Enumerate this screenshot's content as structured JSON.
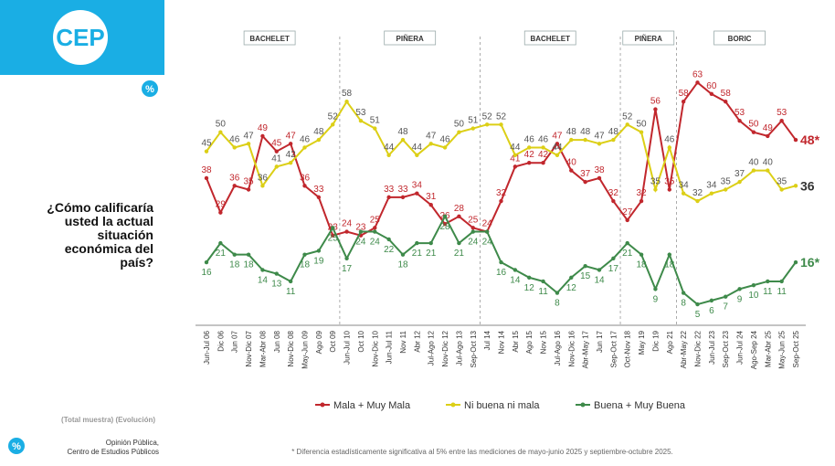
{
  "sidebar": {
    "logo": "CEP",
    "icon": "%",
    "question": [
      "¿Cómo calificaría",
      "usted la actual",
      "situación",
      "económica del",
      "país?"
    ],
    "sample_note": "(Total muestra) (Evolución)",
    "source": [
      "Opinión Pública,",
      "Centro de Estudios Públicos"
    ]
  },
  "footnote": "* Diferencia estadísticamente significativa al 5% entre las mediciones de mayo-junio 2025 y septiembre-octubre 2025.",
  "chart_data": {
    "type": "line",
    "categories": [
      "Jun-Jul 06",
      "Dic 06",
      "Jun 07",
      "Nov-Dic 07",
      "Mar-Abr 08",
      "Jun 08",
      "Nov-Dic 08",
      "May-Jun 09",
      "Ago 09",
      "Oct 09",
      "Jun-Jul 10",
      "Oct 10",
      "Nov-Dic 10",
      "Jun-Jul 11",
      "Nov 11",
      "Abr 12",
      "Jul-Ago 12",
      "Nov-Dic 12",
      "Jul-Ago 13",
      "Sep-Oct 13",
      "Jul 14",
      "Nov 14",
      "Abr 15",
      "Ago 15",
      "Nov 15",
      "Jul-Ago 16",
      "Nov-Dic 16",
      "Abr-May 17",
      "Jun 17",
      "Sep-Oct 17",
      "Oct-Nov 18",
      "May 19",
      "Dic 19",
      "Ago 21",
      "Abr-May 22",
      "Nov-Dic 22",
      "Jun-Jul 23",
      "Sep-Oct 23",
      "Jun-Jul 24",
      "Ago-Sep 24",
      "Mar-Abr 25",
      "May-Jun 25",
      "Sep-Oct 25"
    ],
    "ylim": [
      0,
      70
    ],
    "periods": [
      {
        "label": "BACHELET",
        "from": "Jun-Jul 06",
        "to": "Oct 09"
      },
      {
        "label": "PIÑERA",
        "from": "Jun-Jul 10",
        "to": "Sep-Oct 13"
      },
      {
        "label": "BACHELET",
        "from": "Jul 14",
        "to": "Sep-Oct 17"
      },
      {
        "label": "PIÑERA",
        "from": "Oct-Nov 18",
        "to": "Ago 21"
      },
      {
        "label": "BORIC",
        "from": "Abr-May 22",
        "to": "Sep-Oct 25"
      }
    ],
    "series": [
      {
        "name": "Mala + Muy Mala",
        "color": "#c1272d",
        "label_side": "above",
        "values": [
          38,
          29,
          36,
          35,
          49,
          45,
          47,
          36,
          33,
          23,
          24,
          23,
          25,
          33,
          33,
          34,
          31,
          26,
          28,
          25,
          24,
          32,
          41,
          42,
          42,
          47,
          40,
          37,
          38,
          32,
          27,
          32,
          56,
          35,
          58,
          63,
          60,
          58,
          53,
          50,
          49,
          53,
          48
        ],
        "value_labels": [
          "38",
          "29",
          "36",
          "35",
          "49",
          "45",
          "47",
          "36",
          "33",
          "23",
          "24",
          "23",
          "25",
          "33",
          "33",
          "34",
          "31",
          "26",
          "28",
          "25",
          "24",
          "32",
          "41",
          "42",
          "42",
          "47",
          "40",
          "37",
          "38",
          "32",
          "27",
          "32",
          "56",
          "35",
          "58",
          "63",
          "60",
          "58",
          "53",
          "50",
          "49",
          "53",
          "48*"
        ]
      },
      {
        "name": "Ni buena ni mala",
        "color": "#dccf16",
        "label_side": "above",
        "values": [
          45,
          50,
          46,
          47,
          36,
          41,
          42,
          46,
          48,
          52,
          58,
          53,
          51,
          44,
          48,
          44,
          47,
          46,
          50,
          51,
          52,
          52,
          44,
          46,
          46,
          44,
          48,
          48,
          47,
          48,
          52,
          50,
          35,
          46,
          34,
          32,
          34,
          35,
          37,
          40,
          40,
          35,
          36
        ]
      },
      {
        "name": "Buena + Muy Buena",
        "color": "#3e8a4a",
        "label_side": "below",
        "values": [
          16,
          21,
          18,
          18,
          14,
          13,
          11,
          18,
          19,
          25,
          17,
          24,
          24,
          22,
          18,
          21,
          21,
          28,
          21,
          24,
          24,
          16,
          14,
          12,
          11,
          8,
          12,
          15,
          14,
          17,
          21,
          18,
          9,
          18,
          8,
          5,
          6,
          7,
          9,
          10,
          11,
          11,
          16
        ],
        "value_labels": [
          "16",
          "21",
          "18",
          "18",
          "14",
          "13",
          "11",
          "18",
          "19",
          "25",
          "17",
          "24",
          "24",
          "22",
          "18",
          "21",
          "21",
          "28",
          "21",
          "24",
          "24",
          "16",
          "14",
          "12",
          "11",
          "8",
          "12",
          "15",
          "14",
          "17",
          "21",
          "18",
          "9",
          "18",
          "8",
          "5",
          "6",
          "7",
          "9",
          "10",
          "11",
          "11",
          "16*"
        ]
      }
    ]
  }
}
